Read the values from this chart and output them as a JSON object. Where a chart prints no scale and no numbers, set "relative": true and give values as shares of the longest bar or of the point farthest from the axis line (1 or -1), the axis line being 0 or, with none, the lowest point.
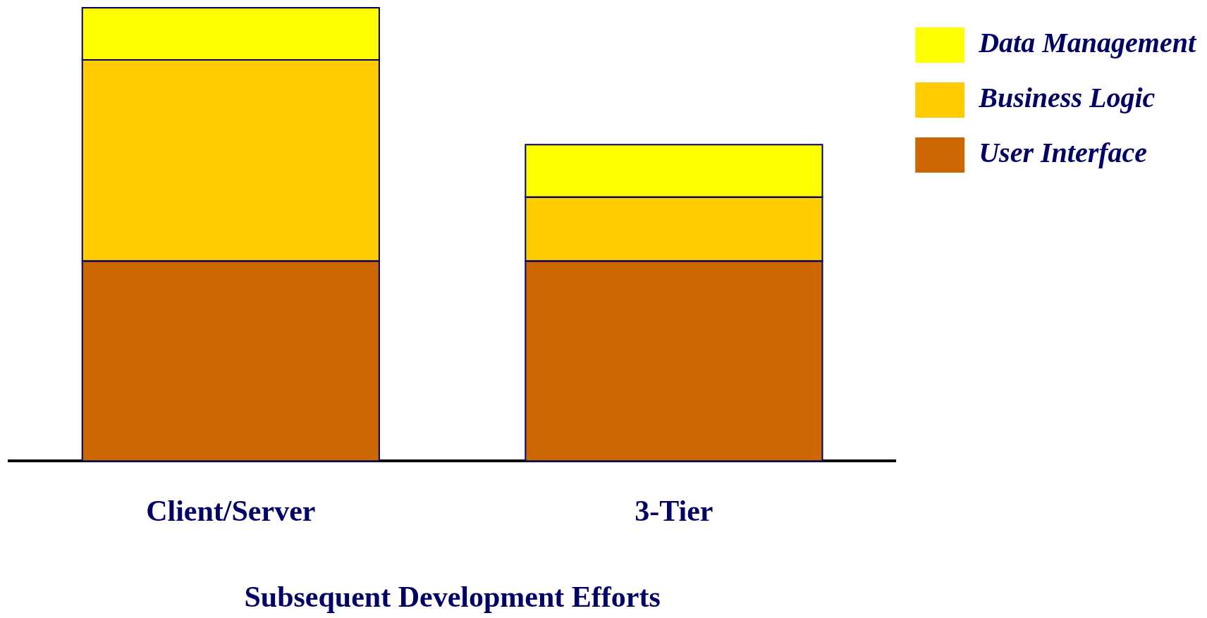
{
  "chart_data": {
    "type": "bar",
    "stacked": true,
    "relative": true,
    "xlabel": "Subsequent Development Efforts",
    "categories": [
      "Client/Server",
      "3-Tier"
    ],
    "legend": "right",
    "series": [
      {
        "name": "User Interface",
        "color": "#cc6600",
        "values": [
          0.441,
          0.441
        ]
      },
      {
        "name": "Business Logic",
        "color": "#ffcc00",
        "values": [
          0.444,
          0.141
        ]
      },
      {
        "name": "Data Management",
        "color": "#ffff00",
        "values": [
          0.115,
          0.116
        ]
      }
    ]
  }
}
